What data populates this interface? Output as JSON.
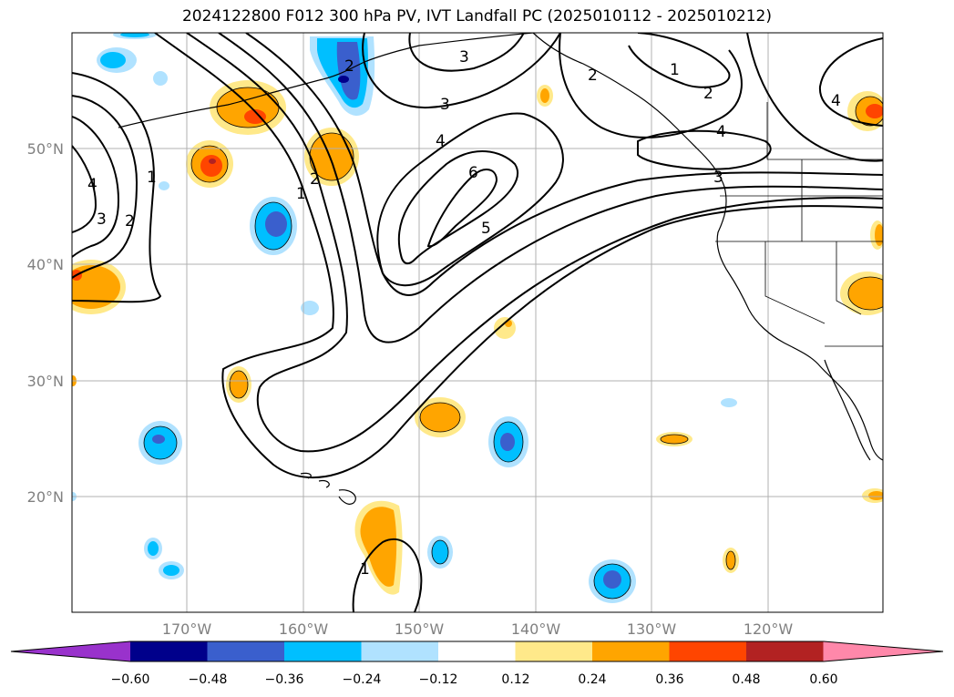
{
  "title": "2024122800 F012 300 hPa PV, IVT Landfall PC (2025010112 - 2025010212)",
  "map": {
    "lat_labels": [
      "50°N",
      "40°N",
      "30°N",
      "20°N"
    ],
    "lon_labels": [
      "170°W",
      "160°W",
      "150°W",
      "140°W",
      "130°W",
      "120°W"
    ],
    "pv_contour_labels": [
      "2",
      "3",
      "3",
      "1",
      "2",
      "4",
      "6",
      "5",
      "2",
      "1",
      "4",
      "3",
      "2",
      "3",
      "1",
      "4",
      "1",
      "2",
      "4"
    ],
    "colors": {
      "contour": "#000000",
      "coast": "#000000",
      "grid": "#b0b0b0",
      "neg_fills": [
        "#9932cc",
        "#00008b",
        "#3a5fcd",
        "#00bfff",
        "#b0e2ff"
      ],
      "pos_fills": [
        "#ffe98a",
        "#ffa500",
        "#ff4500",
        "#b22222",
        "#ff88aa"
      ]
    }
  },
  "colorbar": {
    "ticks": [
      "−0.60",
      "−0.48",
      "−0.36",
      "−0.24",
      "−0.12",
      "0.12",
      "0.24",
      "0.36",
      "0.48",
      "0.60"
    ],
    "colors": [
      "#9932cc",
      "#00008b",
      "#3a5fcd",
      "#00bfff",
      "#b0e2ff",
      "#ffffff",
      "#ffe98a",
      "#ffa500",
      "#ff4500",
      "#b22222",
      "#ff88aa"
    ]
  }
}
